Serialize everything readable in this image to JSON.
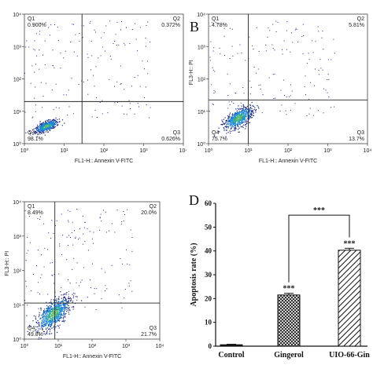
{
  "chart_data": [
    {
      "type": "scatter",
      "panel": "A",
      "letter": "",
      "xlabel": "FL1-H:: Annexin V-FITC",
      "ylabel": "",
      "x_ticks": [
        "10⁰",
        "10¹",
        "10²",
        "10³",
        "10⁴"
      ],
      "y_ticks": [
        "10⁰",
        "10¹",
        "10²",
        "10³",
        "10⁴"
      ],
      "axis_range_log10": [
        0,
        4
      ],
      "gate_log10": {
        "x": 1.45,
        "y": 1.3
      },
      "quadrants": {
        "Q1": {
          "label": "Q1",
          "value": "0.900%"
        },
        "Q2": {
          "label": "Q2",
          "value": "0.372%"
        },
        "Q3": {
          "label": "Q3",
          "value": "0.626%"
        },
        "Q4": {
          "label": "Q4",
          "value": "98.1%"
        }
      }
    },
    {
      "type": "scatter",
      "panel": "B",
      "letter": "B",
      "xlabel": "FL1-H:: Annexin V-FITC",
      "ylabel": "FL3-H:: PI",
      "x_ticks": [
        "10⁰",
        "10¹",
        "10²",
        "10³",
        "10⁴"
      ],
      "y_ticks": [
        "10⁰",
        "10¹",
        "10²",
        "10³",
        "10⁴"
      ],
      "axis_range_log10": [
        0,
        4
      ],
      "gate_log10": {
        "x": 1.0,
        "y": 1.35
      },
      "quadrants": {
        "Q1": {
          "label": "Q1",
          "value": "4.78%"
        },
        "Q2": {
          "label": "Q2",
          "value": "5.81%"
        },
        "Q3": {
          "label": "Q3",
          "value": "13.7%"
        },
        "Q4": {
          "label": "Q4",
          "value": "75.7%"
        }
      }
    },
    {
      "type": "scatter",
      "panel": "C",
      "letter": "",
      "xlabel": "FL1-H:: Annexin V-FITC",
      "ylabel": "FL3-H:: PI",
      "x_ticks": [
        "10⁰",
        "10¹",
        "10²",
        "10³",
        "10⁴"
      ],
      "y_ticks": [
        "10⁰",
        "10¹",
        "10²",
        "10³",
        "10⁴"
      ],
      "axis_range_log10": [
        0,
        4
      ],
      "gate_log10": {
        "x": 0.9,
        "y": 1.05
      },
      "quadrants": {
        "Q1": {
          "label": "Q1",
          "value": "8.49%"
        },
        "Q2": {
          "label": "Q2",
          "value": "20.0%"
        },
        "Q3": {
          "label": "Q3",
          "value": "21.7%"
        },
        "Q4": {
          "label": "Q4",
          "value": "49.8%"
        }
      }
    },
    {
      "type": "bar",
      "panel": "D",
      "letter": "D",
      "categories": [
        "Control",
        "Gingerol",
        "UIO-66-Gin"
      ],
      "values": [
        0.6,
        21.5,
        40.3
      ],
      "errors": [
        0.2,
        0.7,
        0.8
      ],
      "significance": [
        "",
        "***",
        "***"
      ],
      "bracket": {
        "from": "Gingerol",
        "to": "UIO-66-Gin",
        "label": "***"
      },
      "ylabel": "Apoptosis rate (%)",
      "ylim": [
        0,
        60
      ],
      "yticks": [
        0,
        10,
        20,
        30,
        40,
        50,
        60
      ],
      "fills": [
        "solid-black",
        "cross-hatch",
        "diagonal-hatch"
      ]
    }
  ]
}
